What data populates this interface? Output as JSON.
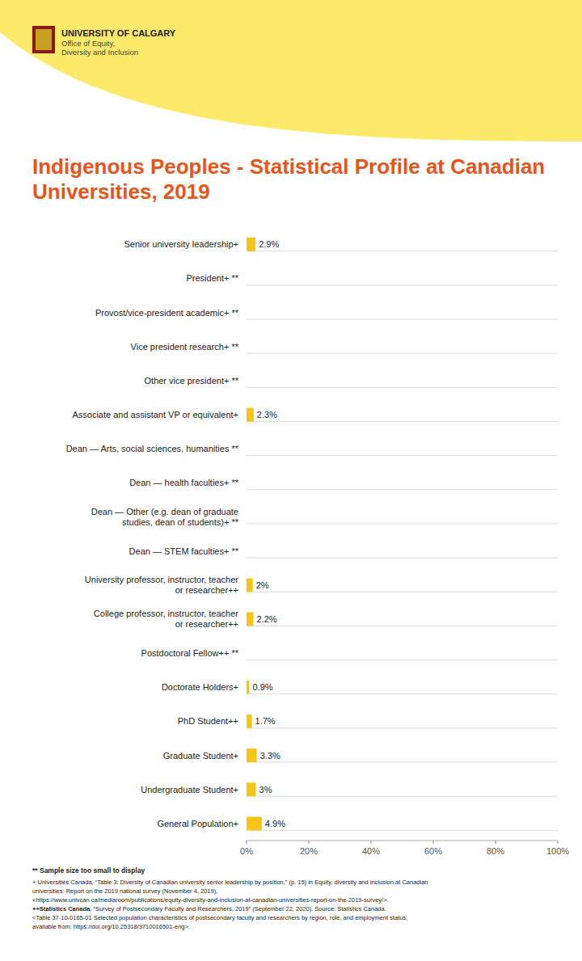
{
  "chart_data": {
    "type": "bar",
    "orientation": "horizontal",
    "title": "Indigenous Peoples - Statistical Profile at Canadian Universities, 2019",
    "categories": [
      "Senior university leadership+",
      "President+ **",
      "Provost/vice-president academic+ **",
      "Vice president research+ **",
      "Other vice president+ **",
      "Associate and assistant VP or equivalent+",
      "Dean — Arts, social sciences, humanities **",
      "Dean — health faculties+ **",
      "Dean — Other (e.g. dean of graduate\nstudies, dean of students)+ **",
      "Dean — STEM faculties+ **",
      "University professor, instructor, teacher\nor researcher++",
      "College professor, instructor, teacher\nor researcher++",
      "Postdoctoral Fellow++ **",
      "Doctorate Holders+",
      "PhD Student++",
      "Graduate Student+",
      "Undergraduate Student+",
      "General Population+"
    ],
    "values": [
      2.9,
      0,
      0,
      0,
      0,
      2.3,
      0,
      0,
      0,
      0,
      2.0,
      2.2,
      0,
      0.9,
      1.7,
      3.3,
      3.0,
      4.9
    ],
    "value_labels": [
      "2.9%",
      null,
      null,
      null,
      null,
      "2.3%",
      null,
      null,
      null,
      null,
      "2%",
      "2.2%",
      null,
      "0.9%",
      "1.7%",
      "3.3%",
      "3%",
      "4.9%"
    ],
    "data_labels": true,
    "color": "#F5C518",
    "xlim": [
      0,
      100
    ],
    "xticks": [
      {
        "value": 0,
        "label": "0%"
      },
      {
        "value": 20,
        "label": "20%"
      },
      {
        "value": 40,
        "label": "40%"
      },
      {
        "value": 60,
        "label": "60%"
      },
      {
        "value": 80,
        "label": "80%"
      },
      {
        "value": 100,
        "label": "100%"
      }
    ],
    "grid": false,
    "annotations": [
      "UNIVERSITY OF CALGARY",
      "Office of Equity,",
      "Diversity and Inclusion",
      "** Sample size too small to display",
      "+ Universities Canada, “Table 3: Diversity of Canadian university senior leadership by position,” (p. 15) in Equity, diversity and inclusion at Canadian",
      "universities: Report on the 2019 national survey (November 4, 2019),",
      "<https://www.univcan.ca/mediaroom/publications/equity-diversity-and-inclusion-at-canadian-universities-report-on-the-2019-survey/>.",
      "++Statistics Canada",
      ", “Survey of Postsecondary Faculty and Researchers, 2019” (September 22, 2020). Source: Statistics Canada.",
      "<Table 37-10-0165-01 Selected population characteristics of postsecondary faculty and researchers by region, role, and employment status;",
      "available from: https://doi.org/10.25318/3710016501-eng>."
    ]
  }
}
